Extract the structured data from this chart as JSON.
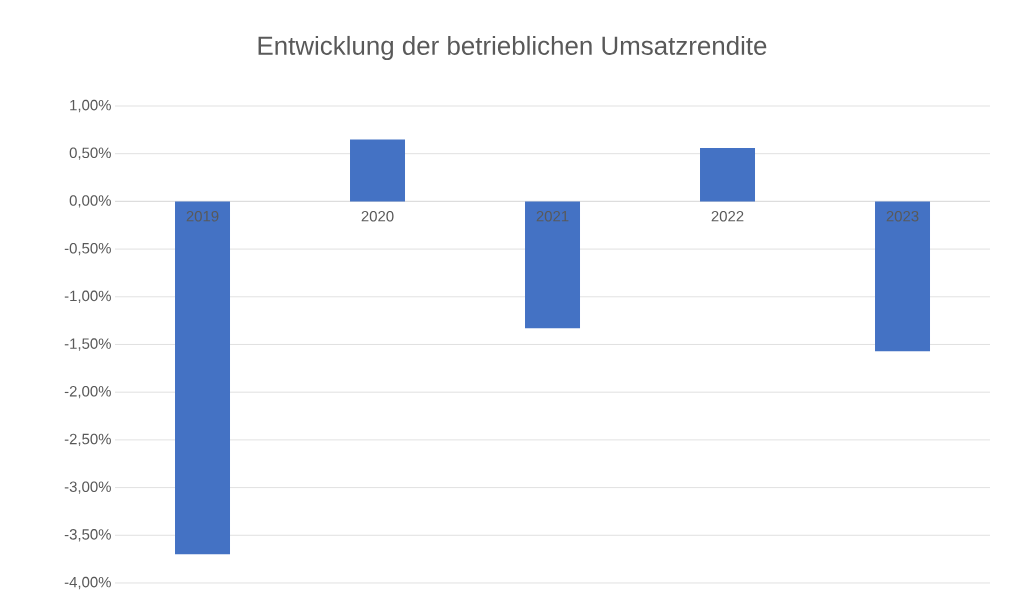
{
  "chart_data": {
    "type": "bar",
    "title": "Entwicklung der betrieblichen Umsatzrendite",
    "categories": [
      "2019",
      "2020",
      "2021",
      "2022",
      "2023"
    ],
    "values": [
      -3.7,
      0.65,
      -1.33,
      0.56,
      -1.57
    ],
    "color": "#4472c4",
    "ylim": [
      -4,
      1
    ],
    "yticks": [
      {
        "value": -4,
        "label": "-4,00%"
      },
      {
        "value": -3.5,
        "label": "-3,50%"
      },
      {
        "value": -3,
        "label": "-3,00%"
      },
      {
        "value": -2.5,
        "label": "-2,50%"
      },
      {
        "value": -2,
        "label": "-2,00%"
      },
      {
        "value": -1.5,
        "label": "-1,50%"
      },
      {
        "value": -1,
        "label": "-1,00%"
      },
      {
        "value": -0.5,
        "label": "-0,50%"
      },
      {
        "value": 0,
        "label": "0,00%"
      },
      {
        "value": 0.5,
        "label": "0,50%"
      },
      {
        "value": 1,
        "label": "1,00%"
      }
    ],
    "grid": "y"
  }
}
